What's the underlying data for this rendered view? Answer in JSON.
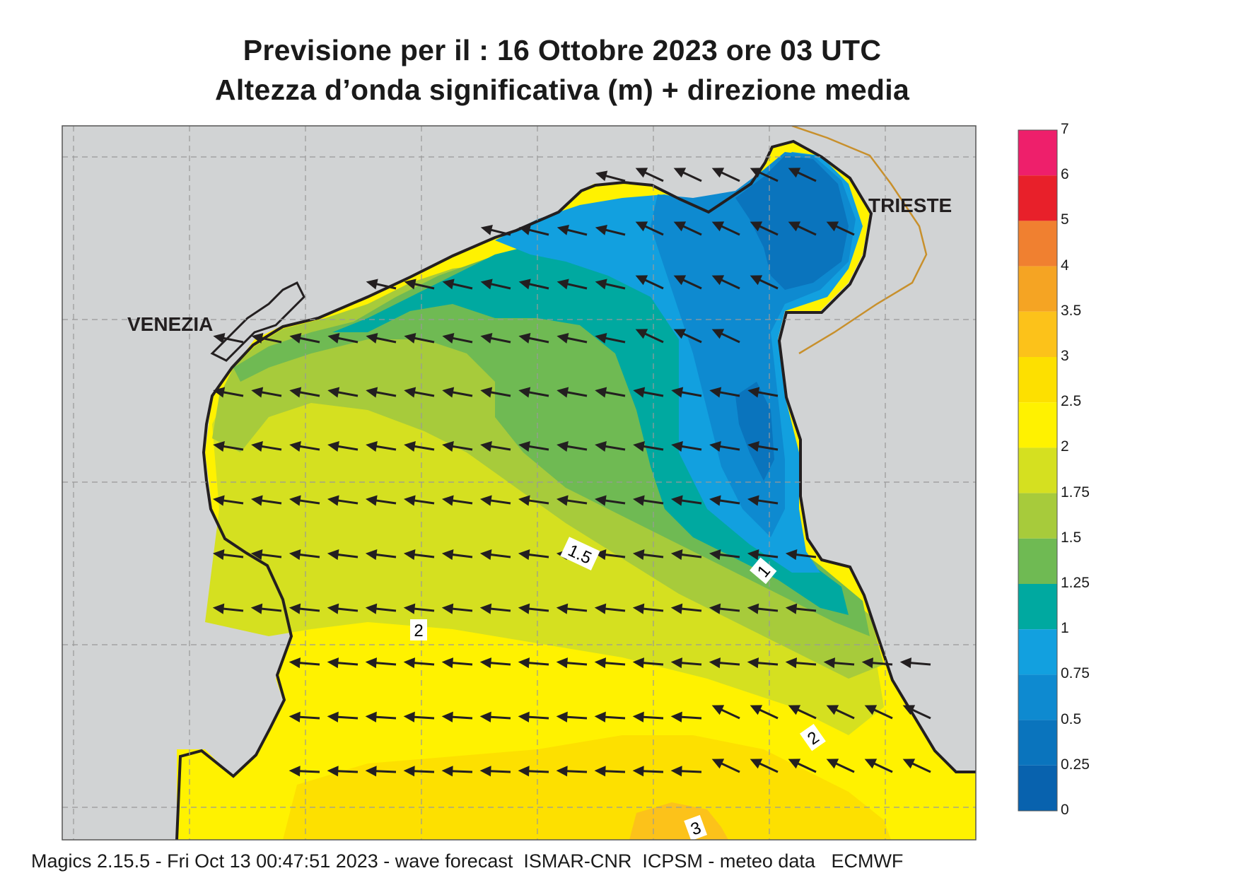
{
  "title_line1": "Previsione per il  :  16  Ottobre  2023   ore 03 UTC",
  "title_line2": "Altezza d’onda significativa (m) + direzione media",
  "footer": "Magics 2.15.5 - Fri Oct 13 00:47:51 2023 - wave forecast  ISMAR-CNR  ICPSM - meteo data   ECMWF",
  "places": {
    "venezia": "VENEZIA",
    "trieste": "TRIESTE"
  },
  "contour_labels": [
    "1.5",
    "1",
    "2",
    "2",
    "3"
  ],
  "legend": {
    "labels": [
      "7",
      "6",
      "5",
      "4",
      "3.5",
      "3",
      "2.5",
      "2",
      "1.75",
      "1.5",
      "1.25",
      "1",
      "0.75",
      "0.5",
      "0.25",
      "0"
    ],
    "colors": [
      "#ee1f6b",
      "#e8202a",
      "#f08030",
      "#f5a423",
      "#fcc21a",
      "#fde000",
      "#fff200",
      "#d5e020",
      "#a7cb3b",
      "#6fba53",
      "#00a9a0",
      "#12a0df",
      "#0e8ad0",
      "#0a74bd",
      "#0862ae"
    ]
  },
  "colors": {
    "land": "#d1d3d4",
    "sea_deep_blue": "#0a70b8",
    "arrow": "#231f20",
    "border": "#c8902c"
  }
}
